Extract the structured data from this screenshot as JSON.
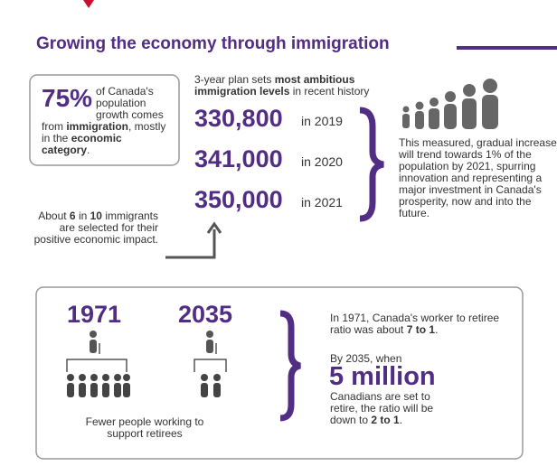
{
  "title": "Growing the economy through immigration",
  "stat_box": {
    "percent": "75%",
    "parts": [
      " of Canada's population growth comes from ",
      "immigration",
      ", mostly in the ",
      "economic category",
      "."
    ]
  },
  "plan": {
    "intro": [
      "3-year plan sets ",
      "most ambitious immigration levels",
      " in recent history"
    ],
    "levels": [
      {
        "number": "330,800",
        "year": "in 2019"
      },
      {
        "number": "341,000",
        "year": "in 2020"
      },
      {
        "number": "350,000",
        "year": "in 2021"
      }
    ]
  },
  "selected": [
    "About ",
    "6",
    " in ",
    "10",
    " immigrants are selected for their positive economic impact."
  ],
  "trend": "This measured, gradual increase will trend towards 1% of the population by 2021, spurring innovation and representing a major investment in Canada's prosperity, now and into the future.",
  "ratio": {
    "years": [
      "1971",
      "2035"
    ],
    "caption": "Fewer people working to support retirees",
    "text1": [
      "In 1971, Canada's worker to retiree ratio was about ",
      "7 to 1",
      "."
    ],
    "text2a": "By 2035, when",
    "big": "5 million",
    "text2b": [
      "Canadians are set to retire, the ratio will be down to ",
      "2 to 1",
      "."
    ]
  }
}
